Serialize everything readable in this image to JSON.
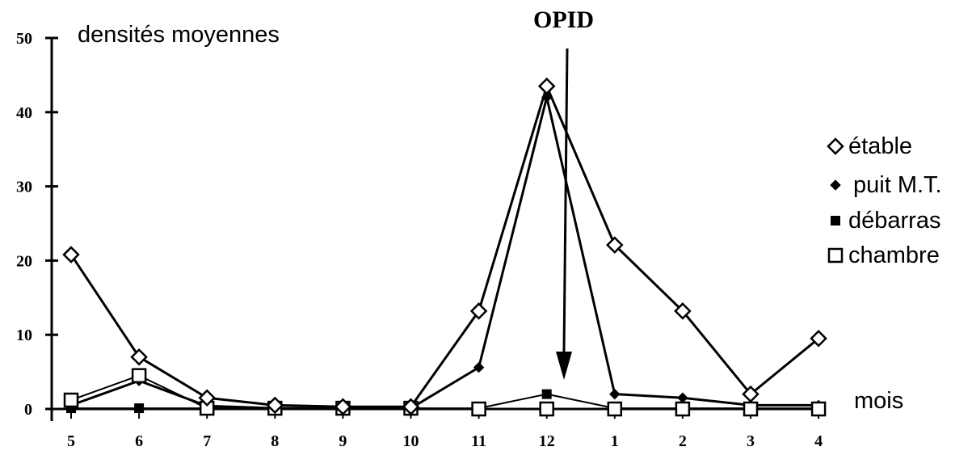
{
  "chart_data": {
    "type": "line",
    "ylabel": "densités moyennes",
    "xlabel": "mois",
    "categories": [
      "5",
      "6",
      "7",
      "8",
      "9",
      "10",
      "11",
      "12",
      "1",
      "2",
      "3",
      "4"
    ],
    "yticks": [
      "0",
      "10",
      "20",
      "30",
      "40",
      "50"
    ],
    "ylim": [
      0,
      50
    ],
    "grid": false,
    "legend_position": "right",
    "annotation": {
      "text": "OPID",
      "x": "12 / 1",
      "arrow": "down"
    },
    "series": [
      {
        "name": "étable",
        "marker": "diamond-open",
        "values": [
          20.8,
          7.0,
          1.5,
          0.5,
          0.3,
          0.3,
          13.2,
          43.5,
          22.1,
          13.2,
          2.0,
          9.5
        ]
      },
      {
        "name": "puit M.T.",
        "marker": "diamond-filled",
        "values": [
          0.5,
          3.8,
          0.4,
          0.1,
          0.1,
          0.1,
          5.6,
          42.0,
          2.0,
          1.5,
          0.5,
          0.5
        ]
      },
      {
        "name": "débarras",
        "marker": "square-filled",
        "values": [
          0.1,
          0.1,
          0.1,
          0.1,
          0.1,
          0.1,
          0.1,
          2.0,
          0.1,
          0.1,
          0.1,
          0.1
        ]
      },
      {
        "name": "chambre",
        "marker": "square-open",
        "values": [
          1.2,
          4.5,
          0.1,
          0.1,
          0.1,
          0.1,
          0.0,
          0.0,
          0.0,
          0.0,
          0.0,
          0.0
        ]
      }
    ]
  }
}
